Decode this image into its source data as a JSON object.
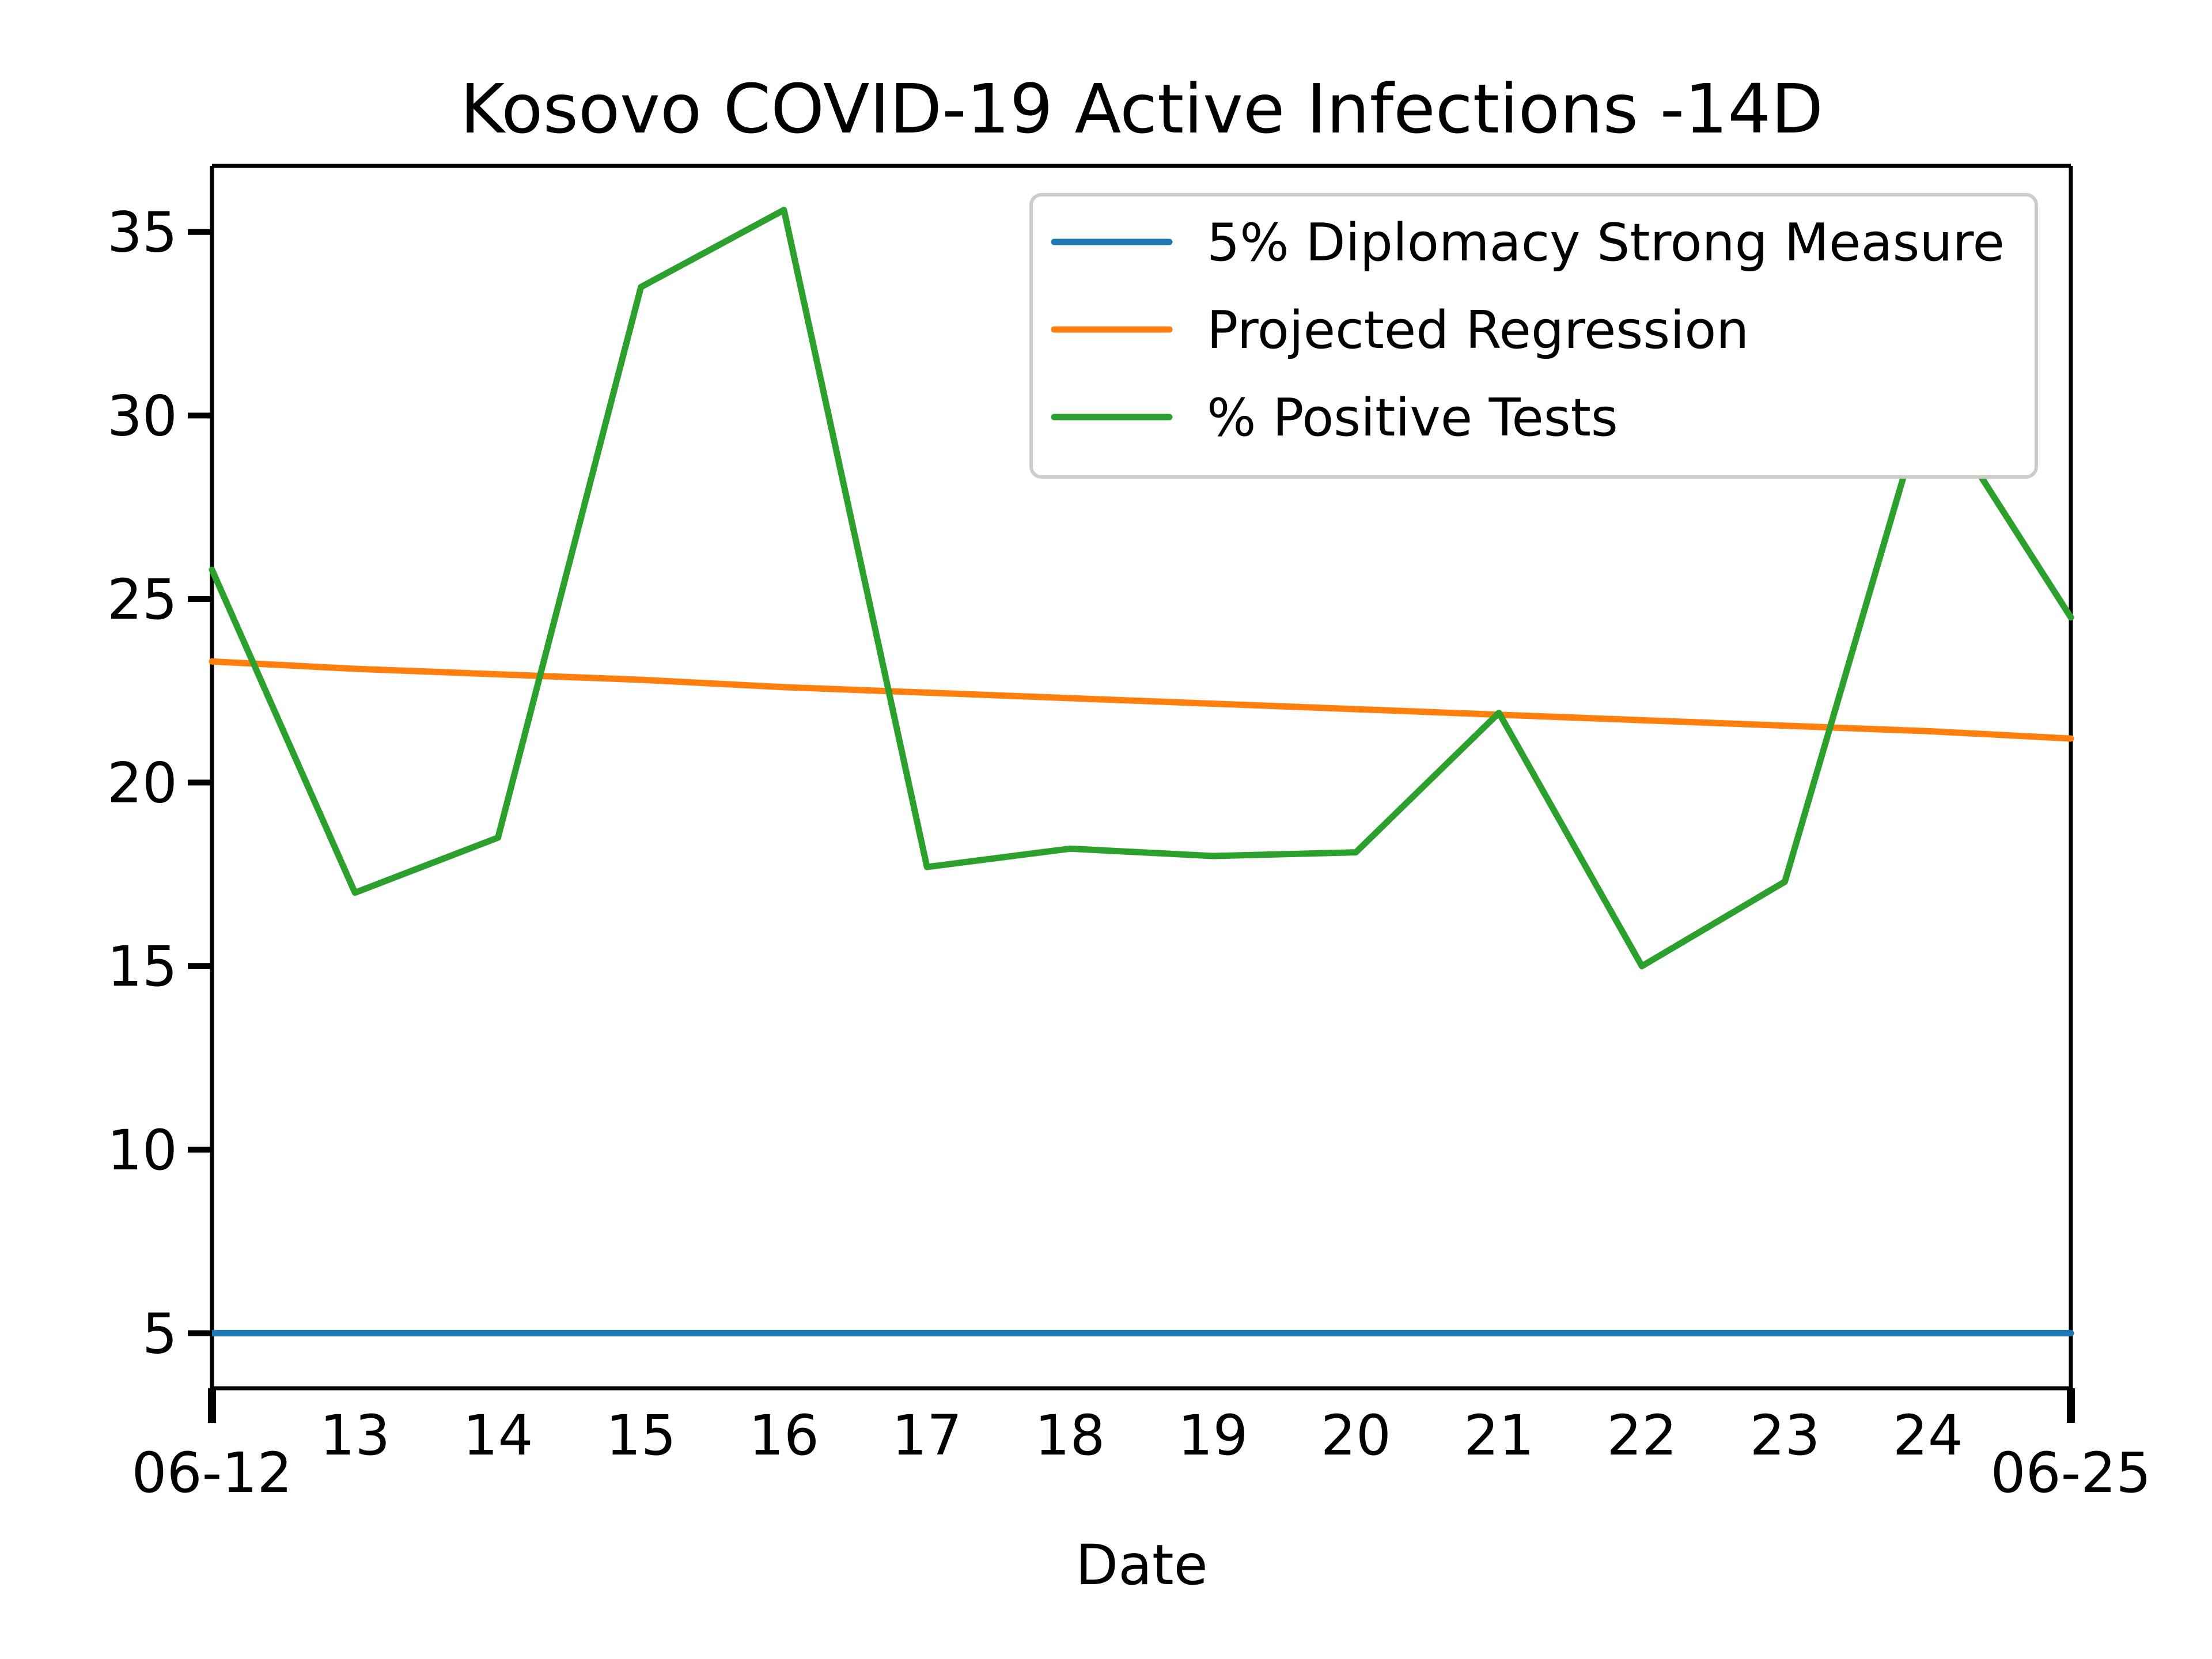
{
  "chart_data": {
    "type": "line",
    "title": "Kosovo COVID-19 Active Infections -14D",
    "xlabel": "Date",
    "ylabel": "",
    "x": [
      "06-12",
      "06-13",
      "06-14",
      "06-15",
      "06-16",
      "06-17",
      "06-18",
      "06-19",
      "06-20",
      "06-21",
      "06-22",
      "06-23",
      "06-24",
      "06-25"
    ],
    "x_tick_labels": [
      "06-12",
      "13",
      "14",
      "15",
      "16",
      "17",
      "18",
      "19",
      "20",
      "21",
      "22",
      "23",
      "24",
      "06-25"
    ],
    "ylim": [
      3.5,
      36.8
    ],
    "y_ticks": [
      5,
      10,
      15,
      20,
      25,
      30,
      35
    ],
    "grid": false,
    "legend_position": "top-right",
    "series": [
      {
        "name": "5% Diplomacy Strong Measure",
        "color": "#1f77b4",
        "values": [
          5,
          5,
          5,
          5,
          5,
          5,
          5,
          5,
          5,
          5,
          5,
          5,
          5,
          5
        ]
      },
      {
        "name": "Projected Regression",
        "color": "#ff7f0e",
        "values": [
          23.3,
          23.1,
          22.95,
          22.8,
          22.6,
          22.45,
          22.3,
          22.15,
          22.0,
          21.85,
          21.7,
          21.55,
          21.4,
          21.2
        ]
      },
      {
        "name": "% Positive Tests",
        "color": "#2ca02c",
        "values": [
          25.8,
          17.0,
          18.5,
          33.5,
          35.6,
          17.7,
          18.2,
          18.0,
          18.1,
          21.9,
          15.0,
          17.3,
          30.6,
          24.5
        ]
      }
    ]
  }
}
